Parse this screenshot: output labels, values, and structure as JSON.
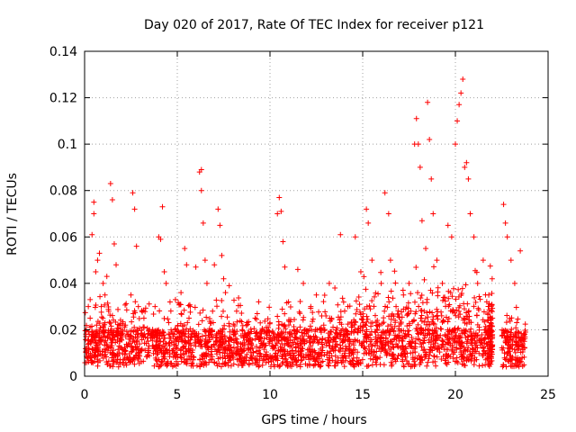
{
  "chart_data": {
    "type": "scatter",
    "title": "Day 020 of 2017, Rate Of TEC Index for receiver p121",
    "xlabel": "GPS time / hours",
    "ylabel": "ROTI / TECUs",
    "xlim": [
      0,
      25
    ],
    "ylim": [
      0,
      0.14
    ],
    "xticks": [
      0,
      5,
      10,
      15,
      20,
      25
    ],
    "xtick_labels": [
      "0",
      "5",
      "10",
      "15",
      "20",
      "25"
    ],
    "yticks": [
      0,
      0.02,
      0.04,
      0.06,
      0.08,
      0.1,
      0.12,
      0.14
    ],
    "ytick_labels": [
      "0",
      "0.02",
      "0.04",
      "0.06",
      "0.08",
      "0.1",
      "0.12",
      "0.14"
    ],
    "grid": true,
    "marker": "+",
    "color": "#ff0000",
    "points": [
      [
        0.2,
        0.012
      ],
      [
        0.3,
        0.025
      ],
      [
        0.3,
        0.033
      ],
      [
        0.4,
        0.061
      ],
      [
        0.5,
        0.07
      ],
      [
        0.5,
        0.075
      ],
      [
        0.6,
        0.045
      ],
      [
        0.7,
        0.05
      ],
      [
        0.8,
        0.053
      ],
      [
        0.9,
        0.03
      ],
      [
        1.0,
        0.04
      ],
      [
        1.1,
        0.035
      ],
      [
        1.2,
        0.043
      ],
      [
        1.3,
        0.028
      ],
      [
        1.4,
        0.083
      ],
      [
        1.5,
        0.076
      ],
      [
        1.6,
        0.057
      ],
      [
        1.7,
        0.048
      ],
      [
        1.9,
        0.015
      ],
      [
        2.2,
        0.022
      ],
      [
        2.5,
        0.035
      ],
      [
        2.6,
        0.079
      ],
      [
        2.7,
        0.072
      ],
      [
        2.8,
        0.056
      ],
      [
        2.9,
        0.03
      ],
      [
        3.2,
        0.025
      ],
      [
        3.5,
        0.02
      ],
      [
        3.8,
        0.03
      ],
      [
        4.0,
        0.06
      ],
      [
        4.1,
        0.059
      ],
      [
        4.2,
        0.073
      ],
      [
        4.3,
        0.045
      ],
      [
        4.4,
        0.04
      ],
      [
        4.6,
        0.018
      ],
      [
        4.9,
        0.033
      ],
      [
        5.2,
        0.036
      ],
      [
        5.4,
        0.055
      ],
      [
        5.5,
        0.048
      ],
      [
        5.7,
        0.03
      ],
      [
        6.0,
        0.047
      ],
      [
        6.2,
        0.088
      ],
      [
        6.3,
        0.089
      ],
      [
        6.3,
        0.08
      ],
      [
        6.4,
        0.066
      ],
      [
        6.5,
        0.05
      ],
      [
        6.6,
        0.04
      ],
      [
        7.0,
        0.048
      ],
      [
        7.2,
        0.072
      ],
      [
        7.3,
        0.065
      ],
      [
        7.4,
        0.052
      ],
      [
        7.5,
        0.042
      ],
      [
        7.6,
        0.036
      ],
      [
        7.8,
        0.039
      ],
      [
        8.2,
        0.028
      ],
      [
        8.5,
        0.02
      ],
      [
        8.8,
        0.018
      ],
      [
        9.2,
        0.025
      ],
      [
        9.6,
        0.02
      ],
      [
        10.0,
        0.023
      ],
      [
        10.4,
        0.07
      ],
      [
        10.5,
        0.077
      ],
      [
        10.6,
        0.071
      ],
      [
        10.7,
        0.058
      ],
      [
        10.8,
        0.047
      ],
      [
        11.0,
        0.032
      ],
      [
        11.5,
        0.046
      ],
      [
        11.8,
        0.04
      ],
      [
        12.2,
        0.03
      ],
      [
        12.5,
        0.035
      ],
      [
        12.9,
        0.022
      ],
      [
        13.2,
        0.04
      ],
      [
        13.5,
        0.038
      ],
      [
        13.8,
        0.061
      ],
      [
        14.2,
        0.03
      ],
      [
        14.6,
        0.06
      ],
      [
        14.9,
        0.045
      ],
      [
        15.2,
        0.072
      ],
      [
        15.3,
        0.066
      ],
      [
        15.5,
        0.05
      ],
      [
        16.0,
        0.04
      ],
      [
        16.2,
        0.079
      ],
      [
        16.4,
        0.07
      ],
      [
        16.5,
        0.05
      ],
      [
        16.8,
        0.03
      ],
      [
        17.2,
        0.035
      ],
      [
        17.5,
        0.04
      ],
      [
        17.8,
        0.1
      ],
      [
        17.9,
        0.111
      ],
      [
        18.0,
        0.1
      ],
      [
        18.1,
        0.09
      ],
      [
        18.2,
        0.067
      ],
      [
        18.4,
        0.055
      ],
      [
        18.5,
        0.118
      ],
      [
        18.6,
        0.102
      ],
      [
        18.7,
        0.085
      ],
      [
        18.8,
        0.07
      ],
      [
        19.0,
        0.05
      ],
      [
        19.3,
        0.04
      ],
      [
        19.6,
        0.065
      ],
      [
        19.8,
        0.06
      ],
      [
        20.0,
        0.1
      ],
      [
        20.1,
        0.11
      ],
      [
        20.2,
        0.117
      ],
      [
        20.3,
        0.122
      ],
      [
        20.4,
        0.128
      ],
      [
        20.5,
        0.09
      ],
      [
        20.6,
        0.092
      ],
      [
        20.7,
        0.085
      ],
      [
        20.8,
        0.07
      ],
      [
        21.0,
        0.06
      ],
      [
        21.2,
        0.04
      ],
      [
        21.5,
        0.05
      ],
      [
        21.8,
        0.035
      ],
      [
        22.0,
        0.025
      ],
      [
        22.6,
        0.074
      ],
      [
        22.7,
        0.066
      ],
      [
        22.8,
        0.06
      ],
      [
        23.0,
        0.05
      ],
      [
        23.2,
        0.04
      ],
      [
        23.5,
        0.054
      ]
    ]
  }
}
